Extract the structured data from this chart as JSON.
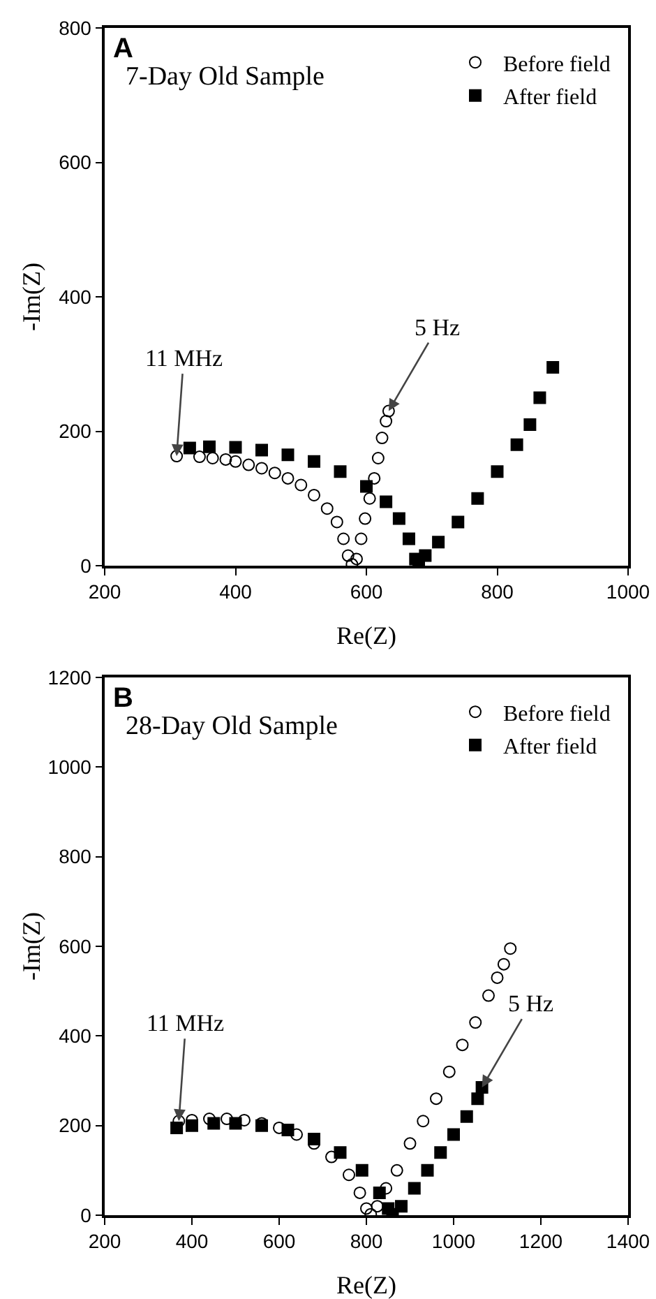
{
  "chart_data": [
    {
      "type": "scatter",
      "title": "7-Day Old Sample",
      "xlabel": "Re(Z)",
      "ylabel": "-Im(Z)",
      "xlim": [
        200,
        1000
      ],
      "xticks": [
        200,
        400,
        600,
        800,
        1000
      ],
      "ylim": [
        0,
        800
      ],
      "yticks": [
        0,
        200,
        400,
        600,
        800
      ],
      "grid": false,
      "legend": "top right",
      "annotations": [
        "A",
        {
          "text": "11 MHz",
          "x": 310,
          "y": 163
        },
        {
          "text": "5 Hz",
          "x": 634,
          "y": 230
        }
      ],
      "series": [
        {
          "name": "Before field",
          "color": "#000000",
          "marker": "circle-open",
          "x": [
            310,
            345,
            365,
            385,
            400,
            420,
            440,
            460,
            480,
            500,
            520,
            540,
            555,
            565,
            572,
            578,
            585,
            592,
            598,
            605,
            612,
            618,
            624,
            630,
            634
          ],
          "values": [
            163,
            162,
            160,
            158,
            155,
            150,
            145,
            138,
            130,
            120,
            105,
            85,
            65,
            40,
            15,
            2,
            10,
            40,
            70,
            100,
            130,
            160,
            190,
            215,
            230
          ]
        },
        {
          "name": "After field",
          "color": "#000000",
          "marker": "square",
          "x": [
            330,
            360,
            400,
            440,
            480,
            520,
            560,
            600,
            630,
            650,
            665,
            675,
            680,
            690,
            710,
            740,
            770,
            800,
            830,
            850,
            865,
            885
          ],
          "values": [
            175,
            177,
            176,
            172,
            165,
            155,
            140,
            118,
            95,
            70,
            40,
            10,
            2,
            15,
            35,
            65,
            100,
            140,
            180,
            210,
            250,
            295
          ]
        }
      ]
    },
    {
      "type": "scatter",
      "title": "28-Day Old Sample",
      "xlabel": "Re(Z)",
      "ylabel": "-Im(Z)",
      "xlim": [
        200,
        1400
      ],
      "xticks": [
        200,
        400,
        600,
        800,
        1000,
        1200,
        1400
      ],
      "ylim": [
        0,
        1200
      ],
      "yticks": [
        0,
        200,
        400,
        600,
        800,
        1000,
        1200
      ],
      "grid": false,
      "legend": "top right",
      "annotations": [
        "B",
        {
          "text": "11 MHz",
          "x": 370,
          "y": 210
        },
        {
          "text": "5 Hz",
          "x": 1065,
          "y": 285
        }
      ],
      "series": [
        {
          "name": "Before field",
          "color": "#000000",
          "marker": "circle-open",
          "x": [
            370,
            400,
            440,
            480,
            520,
            560,
            600,
            640,
            680,
            720,
            760,
            785,
            800,
            810,
            825,
            845,
            870,
            900,
            930,
            960,
            990,
            1020,
            1050,
            1080,
            1100,
            1115,
            1130
          ],
          "values": [
            210,
            212,
            215,
            215,
            212,
            205,
            195,
            180,
            160,
            130,
            90,
            50,
            15,
            2,
            20,
            60,
            100,
            160,
            210,
            260,
            320,
            380,
            430,
            490,
            530,
            560,
            595
          ]
        },
        {
          "name": "After field",
          "color": "#000000",
          "marker": "square",
          "x": [
            365,
            400,
            450,
            500,
            560,
            620,
            680,
            740,
            790,
            830,
            850,
            860,
            880,
            910,
            940,
            970,
            1000,
            1030,
            1055,
            1065
          ],
          "values": [
            195,
            200,
            205,
            205,
            200,
            190,
            170,
            140,
            100,
            50,
            15,
            2,
            20,
            60,
            100,
            140,
            180,
            220,
            260,
            285
          ]
        }
      ]
    }
  ]
}
